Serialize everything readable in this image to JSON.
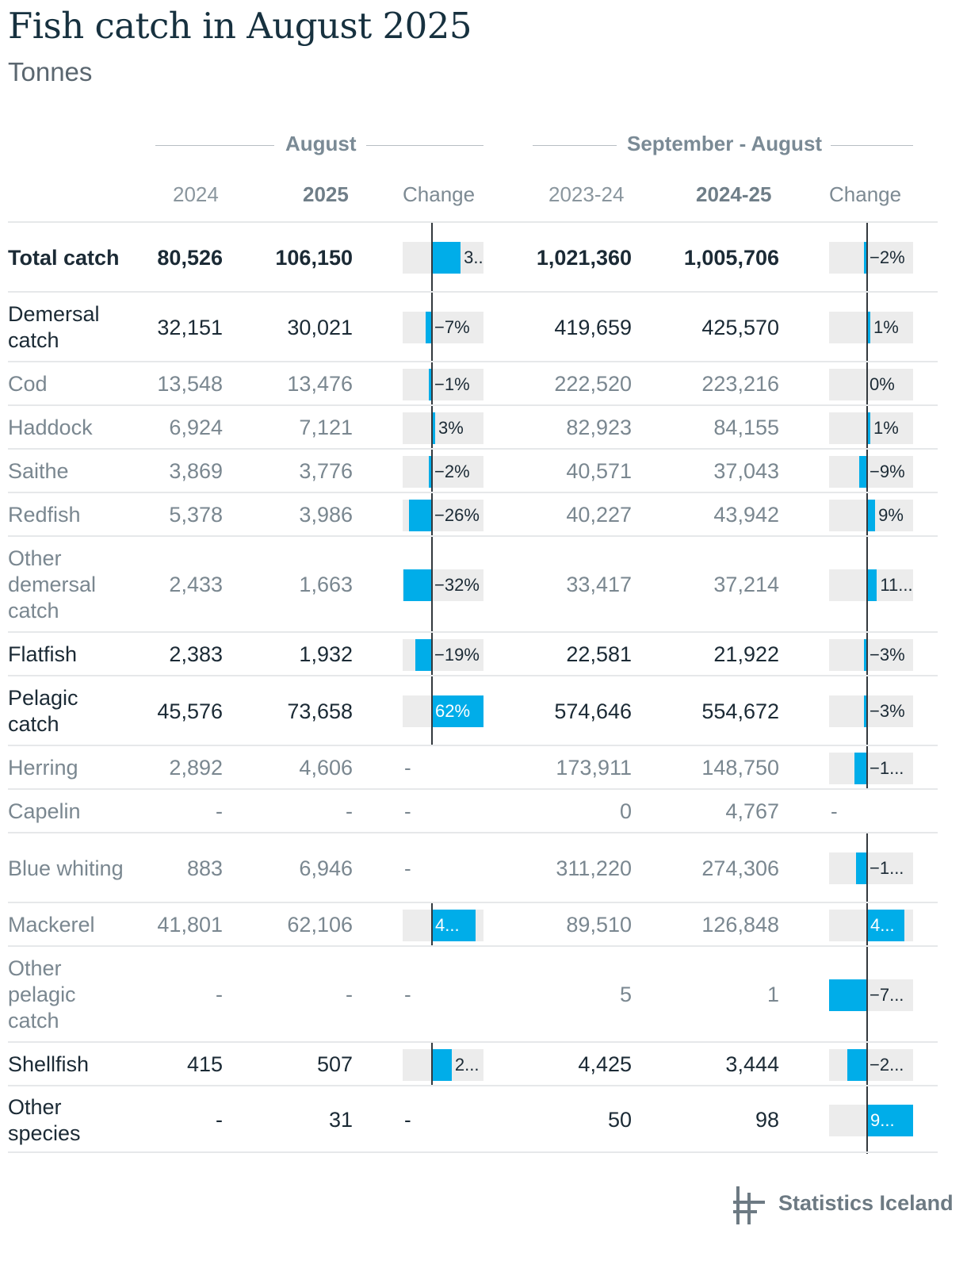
{
  "title": "Fish catch in August 2025",
  "subtitle": "Tonnes",
  "groups": {
    "august": "August",
    "season": "September - August"
  },
  "columns": [
    "2024",
    "2025",
    "Change",
    "2023-24",
    "2024-25",
    "Change"
  ],
  "colors": {
    "bar": "#00ade9",
    "bar_bg": "#ececec",
    "axis": "#33393e"
  },
  "chart_data": {
    "type": "table",
    "title": "Fish catch in August 2025",
    "subtitle": "Tonnes",
    "rows": [
      {
        "label": "Total catch",
        "style": "bold",
        "aug_2024": "80,526",
        "aug_2025": "106,150",
        "aug_change_pct": 32,
        "aug_change_text": "3...",
        "season_2023_24": "1,021,360",
        "season_2024_25": "1,005,706",
        "season_change_pct": -2,
        "season_change_text": "−2%"
      },
      {
        "label": "Demersal catch",
        "style": "head",
        "aug_2024": "32,151",
        "aug_2025": "30,021",
        "aug_change_pct": -7,
        "aug_change_text": "−7%",
        "season_2023_24": "419,659",
        "season_2024_25": "425,570",
        "season_change_pct": 1,
        "season_change_text": "1%"
      },
      {
        "label": "Cod",
        "style": "sub",
        "aug_2024": "13,548",
        "aug_2025": "13,476",
        "aug_change_pct": -1,
        "aug_change_text": "−1%",
        "season_2023_24": "222,520",
        "season_2024_25": "223,216",
        "season_change_pct": 0,
        "season_change_text": "0%"
      },
      {
        "label": "Haddock",
        "style": "sub",
        "aug_2024": "6,924",
        "aug_2025": "7,121",
        "aug_change_pct": 3,
        "aug_change_text": "3%",
        "season_2023_24": "82,923",
        "season_2024_25": "84,155",
        "season_change_pct": 1,
        "season_change_text": "1%"
      },
      {
        "label": "Saithe",
        "style": "sub",
        "aug_2024": "3,869",
        "aug_2025": "3,776",
        "aug_change_pct": -2,
        "aug_change_text": "−2%",
        "season_2023_24": "40,571",
        "season_2024_25": "37,043",
        "season_change_pct": -9,
        "season_change_text": "−9%"
      },
      {
        "label": "Redfish",
        "style": "sub",
        "aug_2024": "5,378",
        "aug_2025": "3,986",
        "aug_change_pct": -26,
        "aug_change_text": "−26%",
        "season_2023_24": "40,227",
        "season_2024_25": "43,942",
        "season_change_pct": 9,
        "season_change_text": "9%"
      },
      {
        "label": "Other demersal catch",
        "style": "sub",
        "aug_2024": "2,433",
        "aug_2025": "1,663",
        "aug_change_pct": -32,
        "aug_change_text": "−32%",
        "season_2023_24": "33,417",
        "season_2024_25": "37,214",
        "season_change_pct": 11,
        "season_change_text": "11..."
      },
      {
        "label": "Flatfish",
        "style": "head",
        "aug_2024": "2,383",
        "aug_2025": "1,932",
        "aug_change_pct": -19,
        "aug_change_text": "−19%",
        "season_2023_24": "22,581",
        "season_2024_25": "21,922",
        "season_change_pct": -3,
        "season_change_text": "−3%"
      },
      {
        "label": "Pelagic catch",
        "style": "head",
        "aug_2024": "45,576",
        "aug_2025": "73,658",
        "aug_change_pct": 62,
        "aug_change_text": "62%",
        "season_2023_24": "574,646",
        "season_2024_25": "554,672",
        "season_change_pct": -3,
        "season_change_text": "−3%"
      },
      {
        "label": "Herring",
        "style": "sub",
        "aug_2024": "2,892",
        "aug_2025": "4,606",
        "aug_change_pct": null,
        "aug_change_text": "-",
        "season_2023_24": "173,911",
        "season_2024_25": "148,750",
        "season_change_pct": -14,
        "season_change_text": "−1..."
      },
      {
        "label": "Capelin",
        "style": "sub",
        "aug_2024": "-",
        "aug_2025": "-",
        "aug_change_pct": null,
        "aug_change_text": "-",
        "season_2023_24": "0",
        "season_2024_25": "4,767",
        "season_change_pct": null,
        "season_change_text": "-"
      },
      {
        "label": "Blue whiting",
        "style": "sub",
        "aug_2024": "883",
        "aug_2025": "6,946",
        "aug_change_pct": null,
        "aug_change_text": "-",
        "season_2023_24": "311,220",
        "season_2024_25": "274,306",
        "season_change_pct": -12,
        "season_change_text": "−1..."
      },
      {
        "label": "Mackerel",
        "style": "sub",
        "aug_2024": "41,801",
        "aug_2025": "62,106",
        "aug_change_pct": 49,
        "aug_change_text": "4...",
        "season_2023_24": "89,510",
        "season_2024_25": "126,848",
        "season_change_pct": 42,
        "season_change_text": "4..."
      },
      {
        "label": "Other pelagic catch",
        "style": "sub",
        "aug_2024": "-",
        "aug_2025": "-",
        "aug_change_pct": null,
        "aug_change_text": "-",
        "season_2023_24": "5",
        "season_2024_25": "1",
        "season_change_pct": -79,
        "season_change_text": "−7..."
      },
      {
        "label": "Shellfish",
        "style": "head",
        "aug_2024": "415",
        "aug_2025": "507",
        "aug_change_pct": 22,
        "aug_change_text": "2...",
        "season_2023_24": "4,425",
        "season_2024_25": "3,444",
        "season_change_pct": -22,
        "season_change_text": "−2..."
      },
      {
        "label": "Other species",
        "style": "head",
        "aug_2024": "-",
        "aug_2025": "31",
        "aug_change_pct": null,
        "aug_change_text": "-",
        "season_2023_24": "50",
        "season_2024_25": "98",
        "season_change_pct": 96,
        "season_change_text": "9..."
      }
    ]
  },
  "source": "Statistics Iceland"
}
